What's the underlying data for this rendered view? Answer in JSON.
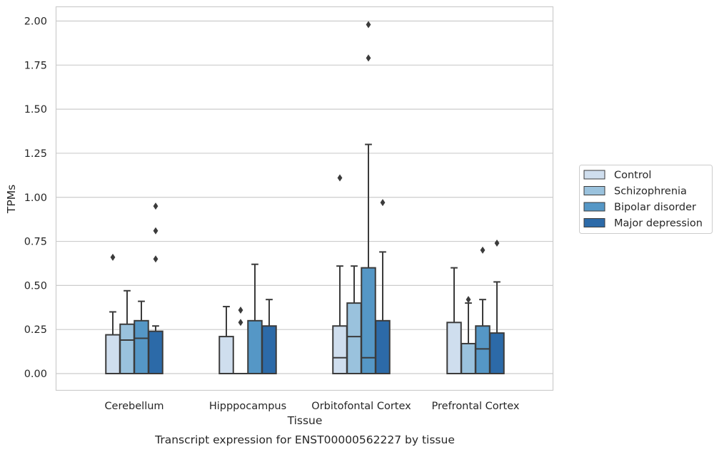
{
  "chart_data": {
    "type": "box",
    "xlabel": "Tissue",
    "ylabel": "TPMs",
    "caption": "Transcript expression for ENST00000562227 by tissue",
    "ylim": [
      -0.1,
      2.08
    ],
    "yticks": [
      "0.00",
      "0.25",
      "0.50",
      "0.75",
      "1.00",
      "1.25",
      "1.50",
      "1.75",
      "2.00"
    ],
    "grid": "horizontal",
    "legend_position": "right",
    "categories": [
      "Cerebellum",
      "Hipppocampus",
      "Orbitofontal Cortex",
      "Prefrontal Cortex"
    ],
    "series": [
      {
        "name": "Control",
        "color": "#cfdeee",
        "boxes": [
          {
            "min": 0.0,
            "q1": 0.0,
            "median": 0.0,
            "q3": 0.22,
            "max": 0.35,
            "outliers": [
              0.66
            ]
          },
          {
            "min": 0.0,
            "q1": 0.0,
            "median": 0.0,
            "q3": 0.21,
            "max": 0.38,
            "outliers": []
          },
          {
            "min": 0.0,
            "q1": 0.0,
            "median": 0.09,
            "q3": 0.27,
            "max": 0.61,
            "outliers": [
              1.11
            ]
          },
          {
            "min": 0.0,
            "q1": 0.0,
            "median": 0.0,
            "q3": 0.29,
            "max": 0.6,
            "outliers": []
          }
        ]
      },
      {
        "name": "Schizophrenia",
        "color": "#9ac2dd",
        "boxes": [
          {
            "min": 0.0,
            "q1": 0.0,
            "median": 0.19,
            "q3": 0.28,
            "max": 0.47,
            "outliers": []
          },
          {
            "min": 0.0,
            "q1": 0.0,
            "median": 0.0,
            "q3": 0.0,
            "max": 0.0,
            "outliers": [
              0.29,
              0.36
            ]
          },
          {
            "min": 0.0,
            "q1": 0.0,
            "median": 0.21,
            "q3": 0.4,
            "max": 0.61,
            "outliers": []
          },
          {
            "min": 0.0,
            "q1": 0.0,
            "median": 0.0,
            "q3": 0.17,
            "max": 0.4,
            "outliers": [
              0.42
            ]
          }
        ]
      },
      {
        "name": "Bipolar disorder",
        "color": "#5597c6",
        "boxes": [
          {
            "min": 0.0,
            "q1": 0.0,
            "median": 0.2,
            "q3": 0.3,
            "max": 0.41,
            "outliers": []
          },
          {
            "min": 0.0,
            "q1": 0.0,
            "median": 0.0,
            "q3": 0.3,
            "max": 0.62,
            "outliers": []
          },
          {
            "min": 0.0,
            "q1": 0.0,
            "median": 0.09,
            "q3": 0.6,
            "max": 1.3,
            "outliers": [
              1.79,
              1.98
            ]
          },
          {
            "min": 0.0,
            "q1": 0.0,
            "median": 0.14,
            "q3": 0.27,
            "max": 0.42,
            "outliers": [
              0.7
            ]
          }
        ]
      },
      {
        "name": "Major depression",
        "color": "#2c6aa8",
        "boxes": [
          {
            "min": 0.0,
            "q1": 0.0,
            "median": 0.0,
            "q3": 0.24,
            "max": 0.27,
            "outliers": [
              0.65,
              0.81,
              0.95
            ]
          },
          {
            "min": 0.0,
            "q1": 0.0,
            "median": 0.0,
            "q3": 0.27,
            "max": 0.42,
            "outliers": []
          },
          {
            "min": 0.0,
            "q1": 0.0,
            "median": 0.0,
            "q3": 0.3,
            "max": 0.69,
            "outliers": [
              0.97
            ]
          },
          {
            "min": 0.0,
            "q1": 0.0,
            "median": 0.0,
            "q3": 0.23,
            "max": 0.52,
            "outliers": [
              0.74
            ]
          }
        ]
      }
    ]
  }
}
